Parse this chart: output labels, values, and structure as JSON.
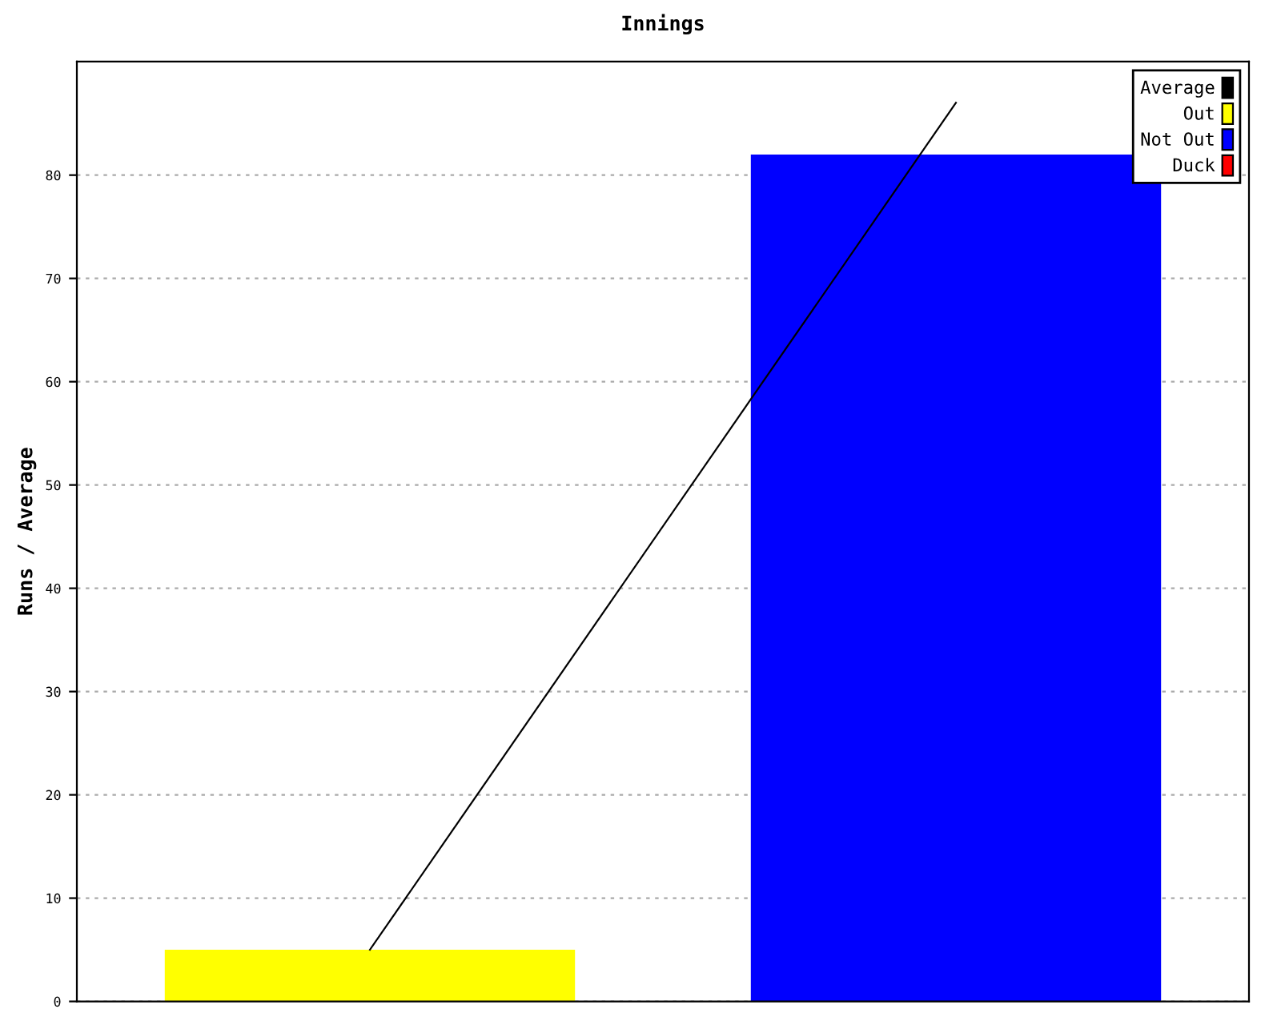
{
  "chart_data": {
    "type": "bar",
    "title": "Innings",
    "ylabel": "Runs / Average",
    "categories": [
      null,
      null
    ],
    "series": [
      {
        "name": "Average",
        "type": "line",
        "color": "#000000",
        "values": [
          5,
          87
        ]
      },
      {
        "name": "Out",
        "color": "#ffff00",
        "values": [
          5,
          null
        ]
      },
      {
        "name": "Not Out",
        "color": "#0000ff",
        "values": [
          null,
          82
        ]
      },
      {
        "name": "Duck",
        "color": "#ff0000",
        "values": [
          null,
          null
        ]
      }
    ],
    "ylim": [
      0,
      91
    ],
    "yticks": [
      0,
      10,
      20,
      30,
      40,
      50,
      60,
      70,
      80
    ],
    "grid": "y",
    "legend": "top right",
    "marker": "none",
    "line_style": "solid"
  }
}
